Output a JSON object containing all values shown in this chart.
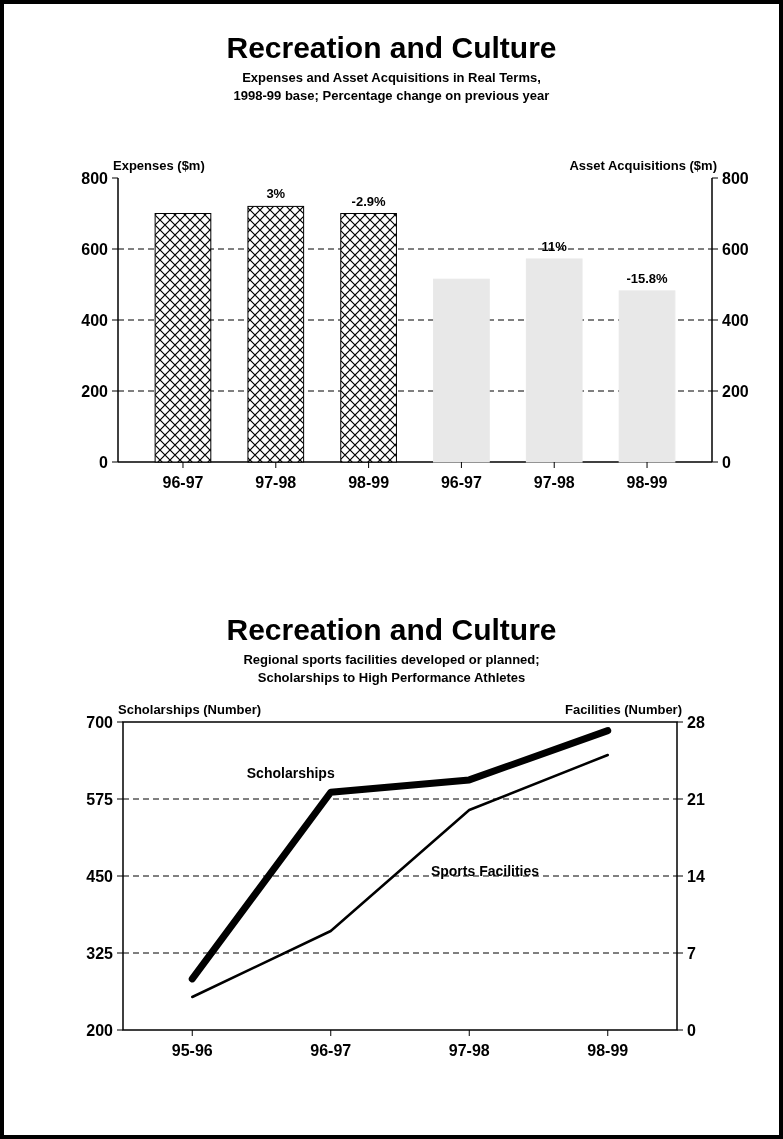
{
  "chart_data": [
    {
      "type": "bar",
      "title": "Recreation and Culture",
      "subtitle": "Expenses and Asset Acquisitions in Real Terms,\n1998-99 base; Percentage change on previous year",
      "ylabel": "Expenses ($m)",
      "y2label": "Asset Acquisitions ($m)",
      "categories": [
        "96-97",
        "97-98",
        "98-99",
        "96-97",
        "97-98",
        "98-99"
      ],
      "series": [
        {
          "color": "#000000",
          "axis": "y",
          "values": [
            700,
            720,
            700,
            null,
            null,
            null
          ]
        },
        {
          "color": "#e8e8e8",
          "axis": "y2",
          "values": [
            null,
            null,
            null,
            515,
            572,
            482
          ]
        }
      ],
      "annotations": [
        {
          "text": "3%",
          "x": "97-98",
          "y": 720
        },
        {
          "text": "-2.9%",
          "x": "98-99",
          "y": 700
        },
        "11%",
        "-15.8%"
      ],
      "ylim": [
        0,
        800
      ],
      "yticks": [
        0,
        200,
        400,
        600,
        800
      ],
      "y2lim": [
        0,
        800
      ],
      "y2ticks": [
        0,
        200,
        400,
        600,
        800
      ],
      "grid": "y"
    },
    {
      "type": "line",
      "title": "Recreation and Culture",
      "subtitle": "Regional sports facilities developed or planned;\nScholarships to High Performance Athletes",
      "ylabel": "Scholarships (Number)",
      "y2label": "Facilities (Number)",
      "categories": [
        "95-96",
        "96-97",
        "97-98",
        "98-99"
      ],
      "series": [
        {
          "name": "Scholarships",
          "color": "#000000",
          "axis": "y",
          "values": [
            283,
            586,
            606,
            686
          ]
        },
        {
          "name": "Sports Facilities",
          "color": "#000000",
          "axis": "y2",
          "values": [
            3,
            9,
            20,
            25
          ]
        }
      ],
      "ylim": [
        200,
        700
      ],
      "yticks": [
        200,
        325,
        450,
        575,
        700
      ],
      "y2lim": [
        0,
        28
      ],
      "y2ticks": [
        0,
        7,
        14,
        21,
        28
      ],
      "grid": "y",
      "line_style": "solid",
      "marker": "none"
    }
  ]
}
